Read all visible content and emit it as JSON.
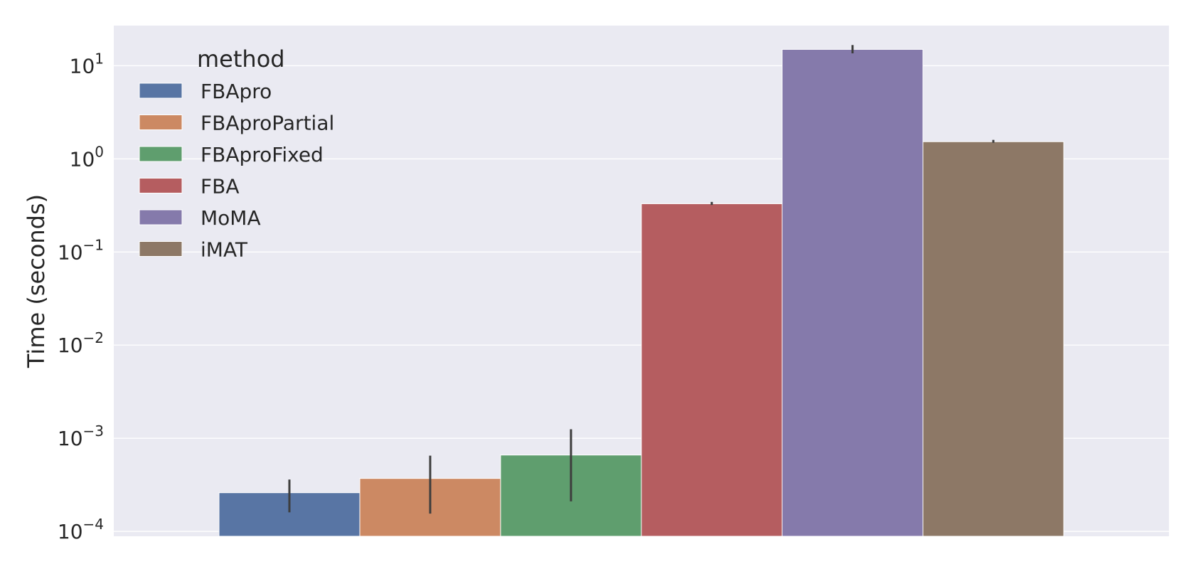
{
  "chart_data": {
    "type": "bar",
    "ylabel": "Time (seconds)",
    "xlabel": "",
    "yscale": "log",
    "ylim": [
      8.85e-05,
      27
    ],
    "grid": true,
    "legend": {
      "title": "method",
      "placement": "top-left"
    },
    "yticks": [
      {
        "value": 0.0001,
        "base": "10",
        "exp": "−4"
      },
      {
        "value": 0.001,
        "base": "10",
        "exp": "−3"
      },
      {
        "value": 0.01,
        "base": "10",
        "exp": "−2"
      },
      {
        "value": 0.1,
        "base": "10",
        "exp": "−1"
      },
      {
        "value": 1,
        "base": "10",
        "exp": "0"
      },
      {
        "value": 10,
        "base": "10",
        "exp": "1"
      }
    ],
    "series": [
      {
        "name": "FBApro",
        "value": 0.00026,
        "err_low": 0.00016,
        "err_high": 0.00036,
        "color": "#5875a4"
      },
      {
        "name": "FBAproPartial",
        "value": 0.00037,
        "err_low": 0.000155,
        "err_high": 0.00065,
        "color": "#cc8963"
      },
      {
        "name": "FBAproFixed",
        "value": 0.00066,
        "err_low": 0.00021,
        "err_high": 0.00125,
        "color": "#5f9e6e"
      },
      {
        "name": "FBA",
        "value": 0.33,
        "err_low": 0.32,
        "err_high": 0.345,
        "color": "#b55d60"
      },
      {
        "name": "MoMA",
        "value": 15.0,
        "err_low": 13.6,
        "err_high": 16.7,
        "color": "#857aab"
      },
      {
        "name": "iMAT",
        "value": 1.53,
        "err_low": 1.49,
        "err_high": 1.6,
        "color": "#8d7866"
      }
    ]
  }
}
